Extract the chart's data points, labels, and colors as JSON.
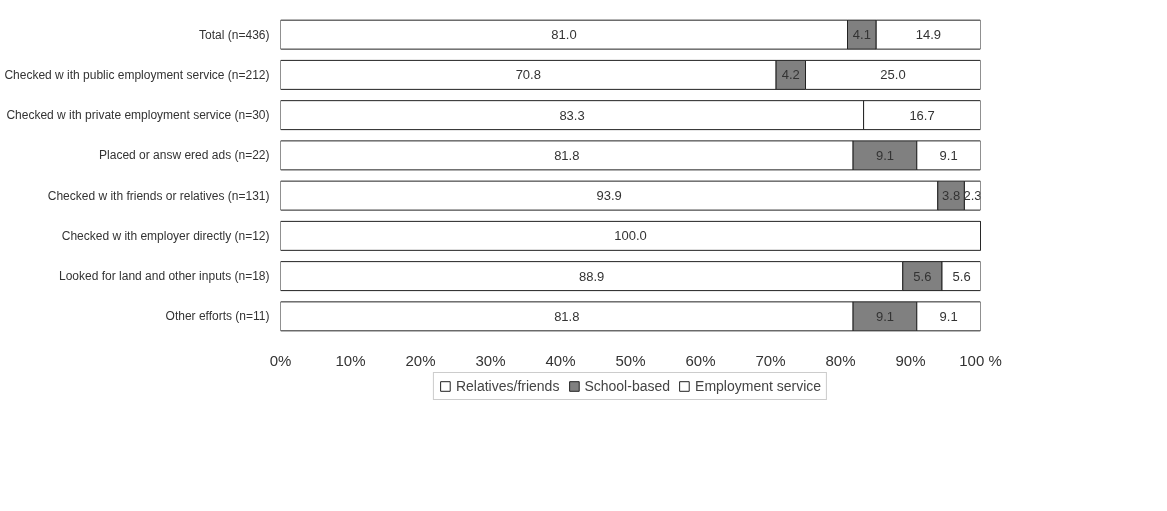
{
  "chart_data": {
    "type": "bar",
    "orientation": "horizontal",
    "stacked": true,
    "categories": [
      "Total (n=436)",
      "Checked w ith public employment service (n=212)",
      "Checked w ith private employment service (n=30)",
      "Placed or answ ered ads (n=22)",
      "Checked w ith friends or relatives (n=131)",
      "Checked w ith employer directly (n=12)",
      "Looked for land and other inputs (n=18)",
      "Other efforts (n=11)"
    ],
    "series": [
      {
        "name": "Relatives/friends",
        "color": "#ffffff",
        "values": [
          81.0,
          70.8,
          83.3,
          81.8,
          93.9,
          100.0,
          88.9,
          81.8
        ],
        "value_labels": [
          "81.0",
          "70.8",
          "83.3",
          "81.8",
          "93.9",
          "100.0",
          "88.9",
          "81.8"
        ]
      },
      {
        "name": "School-based",
        "color": "#808080",
        "values": [
          4.1,
          4.2,
          null,
          9.1,
          3.8,
          null,
          5.6,
          9.1
        ],
        "value_labels": [
          "4.1",
          "4.2",
          null,
          "9.1",
          "3.8",
          null,
          "5.6",
          "9.1"
        ]
      },
      {
        "name": "Employment service",
        "color": "#ffffff",
        "values": [
          14.9,
          25.0,
          16.7,
          9.1,
          2.3,
          null,
          5.6,
          9.1
        ],
        "value_labels": [
          "14.9",
          "25.0",
          "16.7",
          "9.1",
          "2.3",
          null,
          "5.6",
          "9.1"
        ]
      }
    ],
    "xlim": [
      0,
      100
    ],
    "xticks": [
      {
        "value": 0,
        "label": "0%"
      },
      {
        "value": 10,
        "label": "10%"
      },
      {
        "value": 20,
        "label": "20%"
      },
      {
        "value": 30,
        "label": "30%"
      },
      {
        "value": 40,
        "label": "40%"
      },
      {
        "value": 50,
        "label": "50%"
      },
      {
        "value": 60,
        "label": "60%"
      },
      {
        "value": 70,
        "label": "70%"
      },
      {
        "value": 80,
        "label": "80%"
      },
      {
        "value": 90,
        "label": "90%"
      },
      {
        "value": 100,
        "label": "100 %"
      }
    ],
    "legend": "bottom",
    "grid": false
  }
}
